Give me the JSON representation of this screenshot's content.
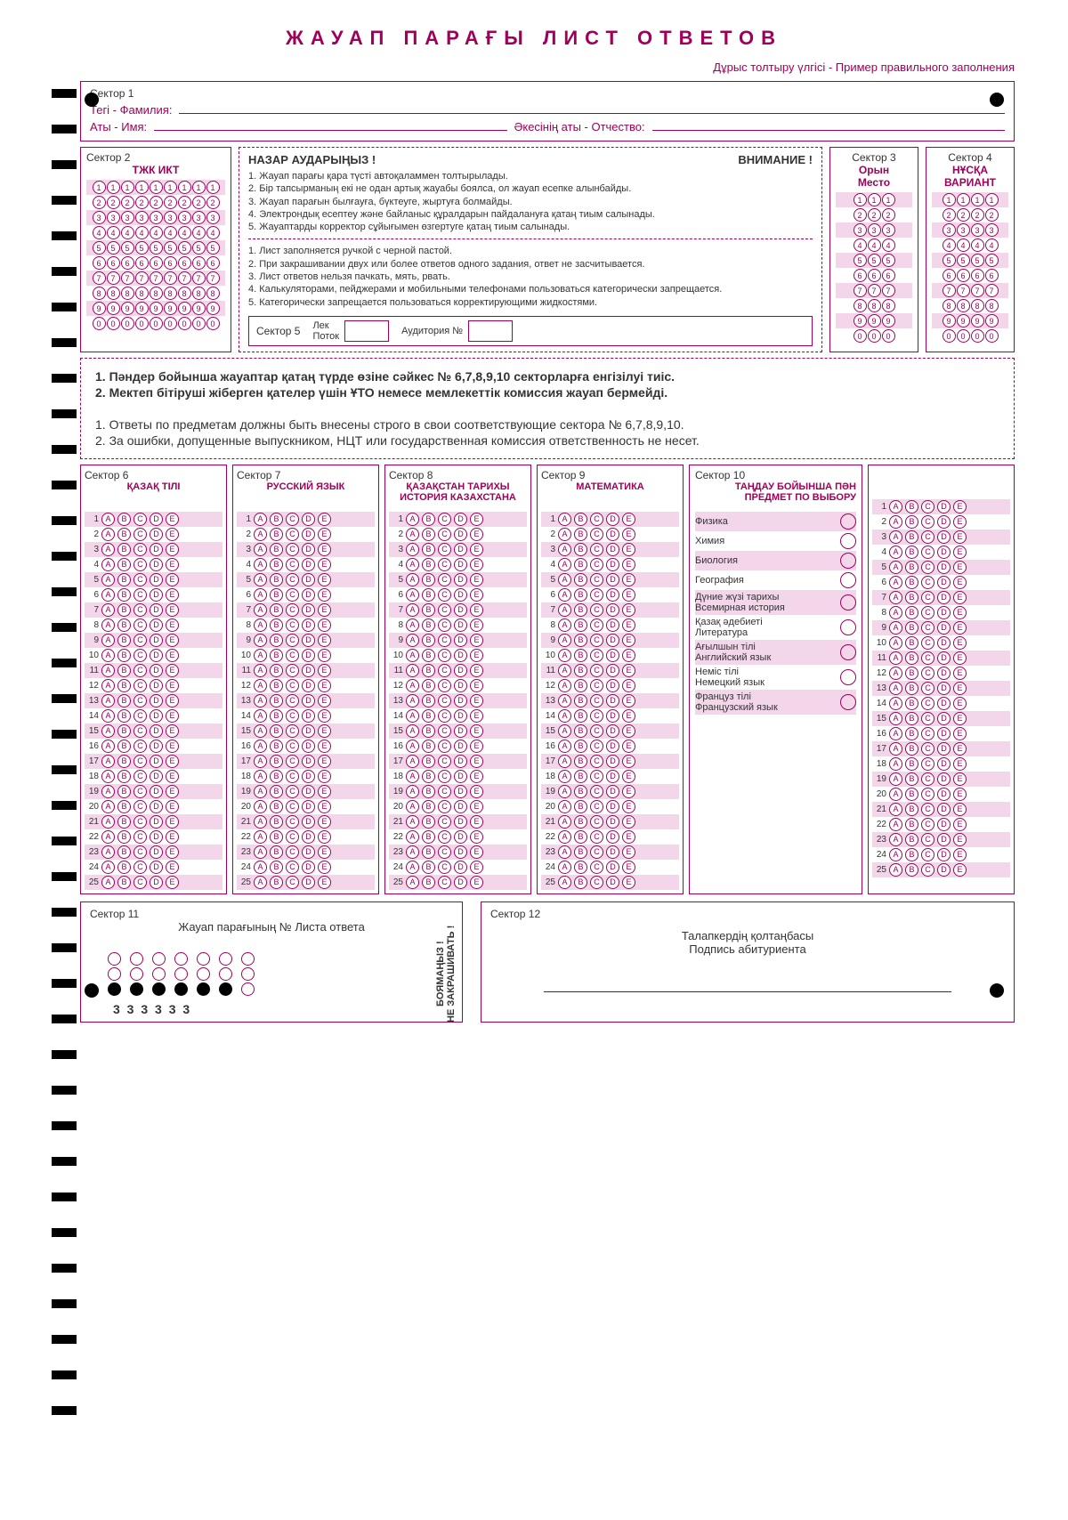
{
  "title": "ЖАУАП  ПАРАҒЫ   ЛИСТ  ОТВЕТОВ",
  "subtitle": "Дұрыс толтыру үлгісі - Пример правильного заполнения",
  "sector1": {
    "label": "Сектор 1",
    "surname": "Тегі  -  Фамилия:",
    "name": "Аты  -  Имя:",
    "patronymic": "Әкесінің аты  -  Отчество:"
  },
  "sector2": {
    "label": "Сектор 2",
    "title": "ТЖК    ИКТ",
    "cols": 9,
    "digits": [
      "1",
      "2",
      "3",
      "4",
      "5",
      "6",
      "7",
      "8",
      "9",
      "0"
    ]
  },
  "sector3": {
    "label": "Сектор 3",
    "title1": "Орын",
    "title2": "Место",
    "cols": 3
  },
  "sector4": {
    "label": "Сектор 4",
    "title1": "НҰСҚА",
    "title2": "ВАРИАНТ",
    "cols": 4
  },
  "sector5": {
    "label": "Сектор 5",
    "flow": "Лек\nПоток",
    "aud": "Аудитория №"
  },
  "notice": {
    "head_kz": "НАЗАР АУДАРЫҢЫЗ !",
    "head_ru": "ВНИМАНИЕ !",
    "kz": [
      "1. Жауап парағы қара түсті автоқаламмен толтырылады.",
      "2. Бір тапсырманың екі не одан артық жауабы боялса, ол жауап есепке алынбайды.",
      "3. Жауап парағын былғауға, бүктеуге, жыртуға болмайды.",
      "4. Электрондық есептеу және байланыс құралдарын пайдалануға қатаң тиым салынады.",
      "5. Жауаптарды корректор сұйығымен өзгертуге қатаң тиым салынады."
    ],
    "ru": [
      "1. Лист заполняется ручкой с черной пастой.",
      "2. При закрашивании двух или более ответов одного задания, ответ не засчитывается.",
      "3. Лист ответов нельзя пачкать, мять, рвать.",
      "4. Калькуляторами, пейджерами и мобильными телефонами пользоваться категорически запрещается.",
      "5. Категорически запрещается пользоваться корректирующими жидкостями."
    ]
  },
  "mid": {
    "kz1": "1. Пәндер бойынша жауаптар қатаң түрде өзіне сәйкес № 6,7,8,9,10 секторларға енгізілуі тиіс.",
    "kz2": "2. Мектеп бітіруші жіберген қателер үшін ҰТО немесе мемлекеттік комиссия жауап бермейді.",
    "ru1": "1. Ответы по предметам должны быть внесены строго в свои соответствующие сектора № 6,7,8,9,10.",
    "ru2": "2. За ошибки, допущенные выпускником, НЦТ или государственная комиссия ответственность не несет."
  },
  "subjects": [
    {
      "label": "Сектор 6",
      "title": "ҚАЗАҚ ТІЛІ"
    },
    {
      "label": "Сектор 7",
      "title": "РУССКИЙ ЯЗЫК"
    },
    {
      "label": "Сектор 8",
      "title": "ҚАЗАҚСТАН ТАРИХЫ\nИСТОРИЯ КАЗАХСТАНА"
    },
    {
      "label": "Сектор 9",
      "title": "МАТЕМАТИКА"
    }
  ],
  "sector10": {
    "label": "Сектор 10",
    "title": "ТАҢДАУ БОЙЫНША ПӘН\nПРЕДМЕТ ПО ВЫБОРУ",
    "choices": [
      "Физика",
      "Химия",
      "Биология",
      "География",
      "Дүние жүзі тарихы\nВсемирная история",
      "Қазақ әдебиеті\nЛитература",
      "Ағылшын тілі\nАнглийский язык",
      "Неміс тілі\nНемецкий язык",
      "Француз тілі\nФранцузский язык"
    ]
  },
  "letters": [
    "A",
    "B",
    "C",
    "D",
    "E"
  ],
  "numQuestions": 25,
  "sector11": {
    "label": "Сектор 11",
    "title": "Жауап парағының № Листа ответа",
    "vert": "БОЯМАҢЫЗ !\nНЕ ЗАКРАШИВАТЬ !",
    "nums": "3 3 3 3 3 3"
  },
  "sector12": {
    "label": "Сектор 12",
    "l1": "Талапкердің қолтаңбасы",
    "l2": "Подпись абитуриента"
  }
}
